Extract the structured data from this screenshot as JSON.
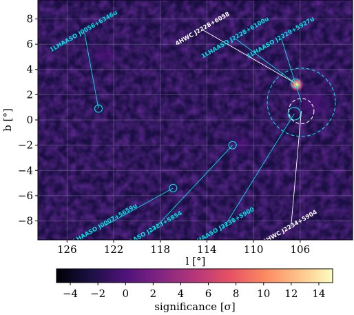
{
  "chart_data": {
    "type": "heatmap",
    "title": "",
    "xlabel": "l [°]",
    "ylabel": "b [°]",
    "xlim": [
      128.5,
      101.5
    ],
    "ylim": [
      -9.5,
      9.5
    ],
    "x_ticks": [
      126,
      122,
      118,
      114,
      110,
      106
    ],
    "x_tick_labels": [
      "126",
      "122",
      "118",
      "114",
      "110",
      "106"
    ],
    "y_ticks": [
      8,
      6,
      4,
      2,
      0,
      -2,
      -4,
      -6,
      -8
    ],
    "y_tick_labels": [
      "8",
      "6",
      "4",
      "2",
      "0",
      "−2",
      "−4",
      "−6",
      "−8"
    ],
    "grid": true,
    "colorbar": {
      "label": "significance [σ]",
      "range": [
        -5,
        15
      ],
      "ticks": [
        -4,
        -2,
        0,
        2,
        4,
        6,
        8,
        10,
        12,
        14
      ],
      "tick_labels": [
        "−4",
        "−2",
        "0",
        "2",
        "4",
        "6",
        "8",
        "10",
        "12",
        "14"
      ],
      "colormap": "magma"
    },
    "hotspot": {
      "l": 106.3,
      "b": 2.8,
      "peak_significance": 15
    },
    "sources": [
      {
        "name": "1LHAASO J0056+6346u",
        "l": 123.3,
        "b": 0.9,
        "color": "#00e5e5",
        "label_l": 124.5,
        "label_b": 6.9,
        "radius_deg": 0.3,
        "dashed": false
      },
      {
        "name": "4HWC J2228+6058",
        "l": 106.4,
        "b": 2.9,
        "color": "#ffffff",
        "label_l": 114.3,
        "label_b": 7.1,
        "radius_deg": 0,
        "dashed": false
      },
      {
        "name": "1LHAASO J2228+6100u",
        "l": 106.4,
        "b": 2.9,
        "color": "#00e5e5",
        "label_l": 111.5,
        "label_b": 6.4,
        "radius_deg": 0.35,
        "dashed": false
      },
      {
        "name": "1LHAASO J2229+5927u",
        "l": 105.9,
        "b": 1.4,
        "color": "#00e5e5",
        "label_l": 107.6,
        "label_b": 6.4,
        "radius_deg": 2.7,
        "dashed": true
      },
      {
        "name": "1LHAASO J0007+5659u",
        "l": 116.9,
        "b": -5.4,
        "color": "#00e5e5",
        "label_l": 122.8,
        "label_b": -8.4,
        "radius_deg": 0.3,
        "dashed": false
      },
      {
        "name": "1LHAASO J2323+5854",
        "l": 111.8,
        "b": -2.0,
        "color": "#00e5e5",
        "label_l": 118.8,
        "label_b": -8.9,
        "radius_deg": 0.3,
        "dashed": false
      },
      {
        "name": "1LHAASO J2238+5900",
        "l": 106.5,
        "b": 0.5,
        "color": "#00e5e5",
        "label_l": 112.6,
        "label_b": -8.6,
        "radius_deg": 0.5,
        "dashed": false
      },
      {
        "name": "4HWC J2234+5904",
        "l": 105.9,
        "b": 0.7,
        "color": "#ffffff",
        "label_l": 106.8,
        "label_b": -8.6,
        "radius_deg": 1.0,
        "dashed": true
      }
    ]
  }
}
